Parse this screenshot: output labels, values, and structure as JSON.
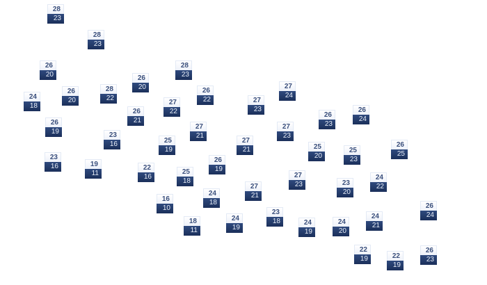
{
  "colors": {
    "high_bg": "#f4f7fc",
    "high_text": "#3a4f7c",
    "low_bg": "#253d6c",
    "low_text": "#e8eef8"
  },
  "stations": [
    {
      "high": "28",
      "low": "23"
    },
    {
      "high": "28",
      "low": "23"
    },
    {
      "high": "26",
      "low": "20"
    },
    {
      "high": "28",
      "low": "23"
    },
    {
      "high": "26",
      "low": "20"
    },
    {
      "high": "24",
      "low": "18"
    },
    {
      "high": "26",
      "low": "20"
    },
    {
      "high": "28",
      "low": "22"
    },
    {
      "high": "26",
      "low": "22"
    },
    {
      "high": "27",
      "low": "22"
    },
    {
      "high": "26",
      "low": "21"
    },
    {
      "high": "26",
      "low": "19"
    },
    {
      "high": "27",
      "low": "21"
    },
    {
      "high": "23",
      "low": "16"
    },
    {
      "high": "25",
      "low": "19"
    },
    {
      "high": "23",
      "low": "16"
    },
    {
      "high": "19",
      "low": "11"
    },
    {
      "high": "22",
      "low": "16"
    },
    {
      "high": "26",
      "low": "19"
    },
    {
      "high": "25",
      "low": "18"
    },
    {
      "high": "16",
      "low": "10"
    },
    {
      "high": "24",
      "low": "18"
    },
    {
      "high": "18",
      "low": "11"
    },
    {
      "high": "24",
      "low": "19"
    },
    {
      "high": "27",
      "low": "24"
    },
    {
      "high": "27",
      "low": "23"
    },
    {
      "high": "26",
      "low": "23"
    },
    {
      "high": "26",
      "low": "24"
    },
    {
      "high": "27",
      "low": "23"
    },
    {
      "high": "27",
      "low": "21"
    },
    {
      "high": "25",
      "low": "20"
    },
    {
      "high": "25",
      "low": "23"
    },
    {
      "high": "26",
      "low": "25"
    },
    {
      "high": "27",
      "low": "23"
    },
    {
      "high": "27",
      "low": "21"
    },
    {
      "high": "23",
      "low": "20"
    },
    {
      "high": "24",
      "low": "22"
    },
    {
      "high": "23",
      "low": "18"
    },
    {
      "high": "24",
      "low": "19"
    },
    {
      "high": "24",
      "low": "20"
    },
    {
      "high": "24",
      "low": "21"
    },
    {
      "high": "26",
      "low": "24"
    },
    {
      "high": "22",
      "low": "19"
    },
    {
      "high": "22",
      "low": "19"
    },
    {
      "high": "26",
      "low": "23"
    }
  ]
}
